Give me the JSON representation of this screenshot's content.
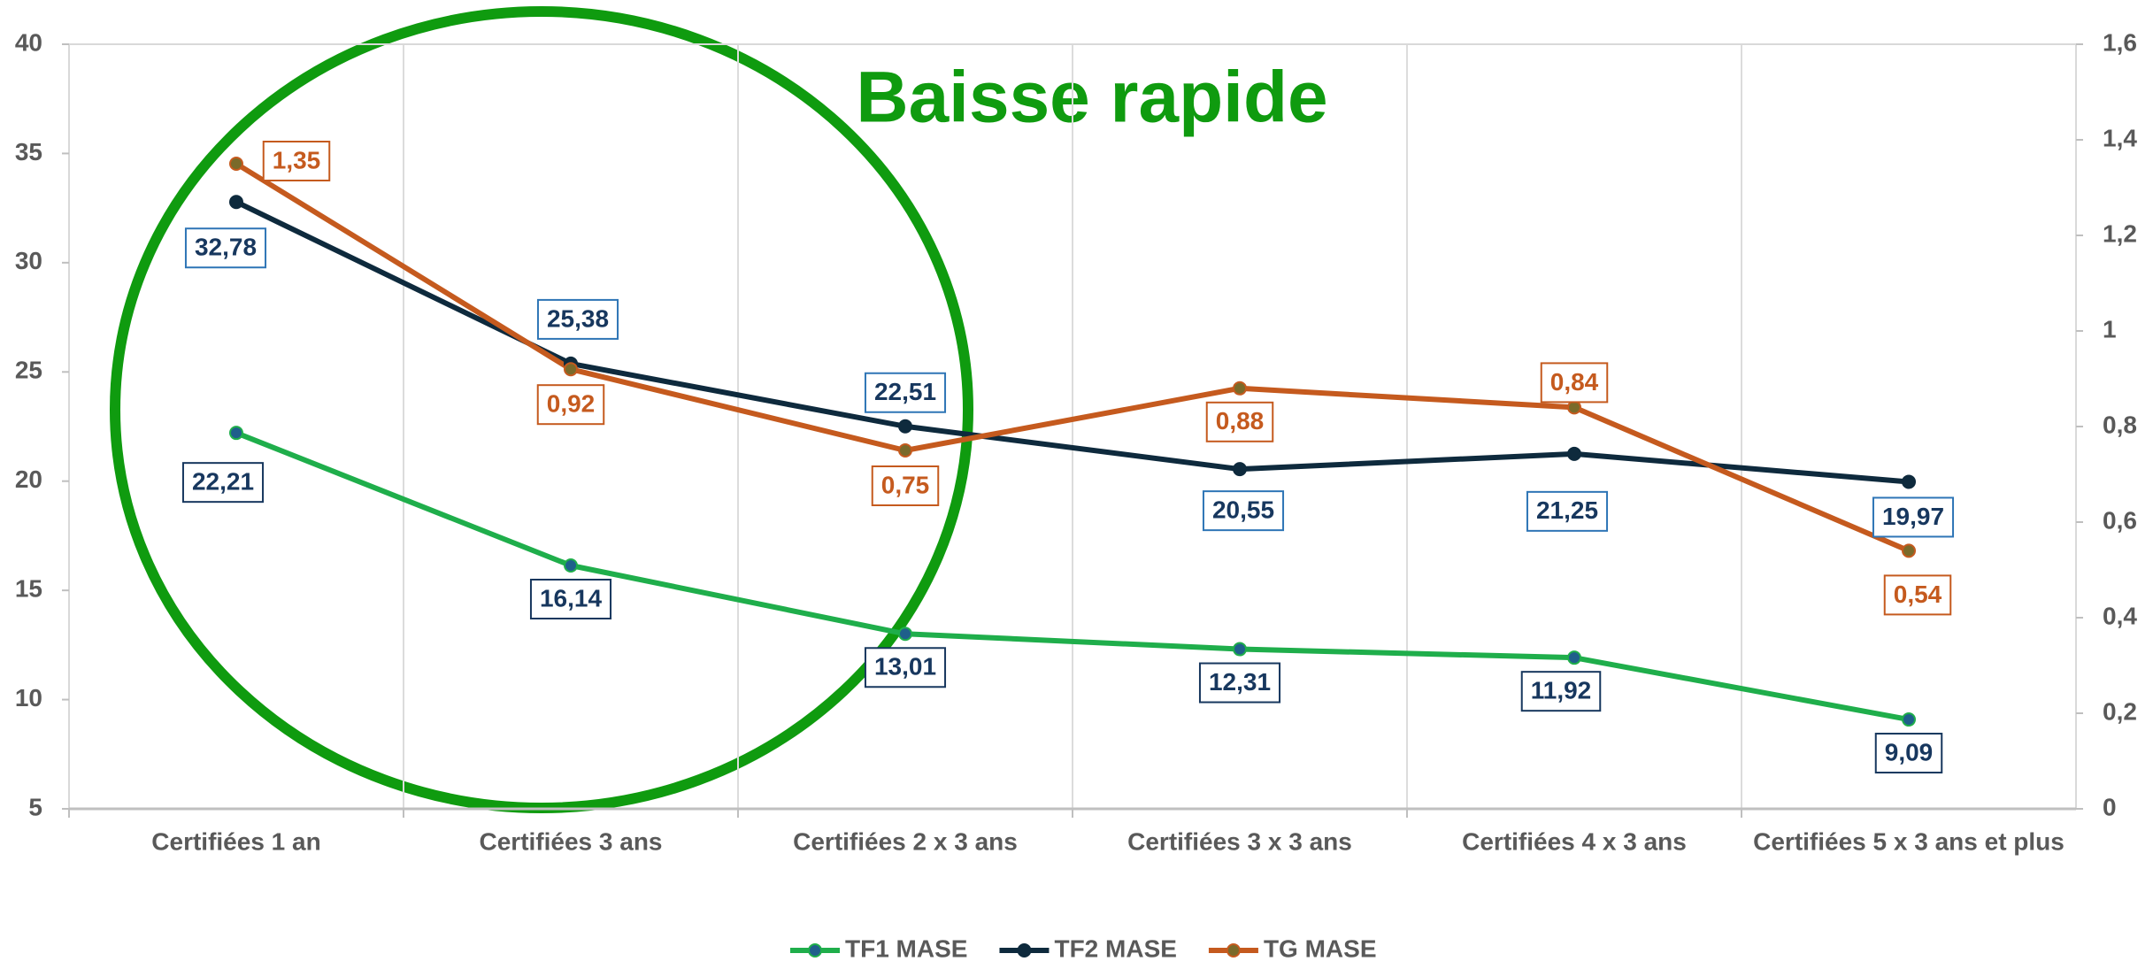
{
  "chart_data": {
    "type": "line",
    "annotation": "Baisse rapide",
    "categories": [
      "Certifiées 1 an",
      "Certifiées 3 ans",
      "Certifiées 2 x 3 ans",
      "Certifiées 3 x 3 ans",
      "Certifiées 4 x 3 ans",
      "Certifiées 5 x 3 ans et plus"
    ],
    "series": [
      {
        "name": "TF1 MASE",
        "color": "#1fae4b",
        "marker_color": "#1f5f8b",
        "values": [
          22.21,
          16.14,
          13.01,
          12.31,
          11.92,
          9.09
        ],
        "value_labels": [
          "22,21",
          "16,14",
          "13,01",
          "12,31",
          "11,92",
          "9,09"
        ]
      },
      {
        "name": "TF2 MASE",
        "color": "#0e2a3d",
        "marker_color": "#0e2a3d",
        "values": [
          32.78,
          25.38,
          22.51,
          20.55,
          21.25,
          19.97
        ],
        "value_labels": [
          "32,78",
          "25,38",
          "22,51",
          "20,55",
          "21,25",
          "19,97"
        ]
      },
      {
        "name": "TG MASE",
        "color": "#c55a1e",
        "marker_color": "#7a6a2a",
        "axis": "y2",
        "values": [
          1.35,
          0.92,
          0.75,
          0.88,
          0.84,
          0.54
        ],
        "value_labels": [
          "1,35",
          "0,92",
          "0,75",
          "0,88",
          "0,84",
          "0,54"
        ]
      }
    ],
    "ylim": [
      5,
      40
    ],
    "yticks": [
      5,
      10,
      15,
      20,
      25,
      30,
      35,
      40
    ],
    "y2lim": [
      0,
      1.6
    ],
    "y2ticks": [
      0,
      {
        "value": 0.2,
        "label": "0,2"
      },
      {
        "value": 0.4,
        "label": "0,4"
      },
      {
        "value": 0.6,
        "label": "0,6"
      },
      {
        "value": 0.8,
        "label": "0,8"
      },
      1,
      {
        "value": 1.2,
        "label": "1,2"
      },
      {
        "value": 1.4,
        "label": "1,4"
      },
      {
        "value": 1.6,
        "label": "1,6"
      }
    ],
    "grid": true,
    "legend": "bottom"
  }
}
